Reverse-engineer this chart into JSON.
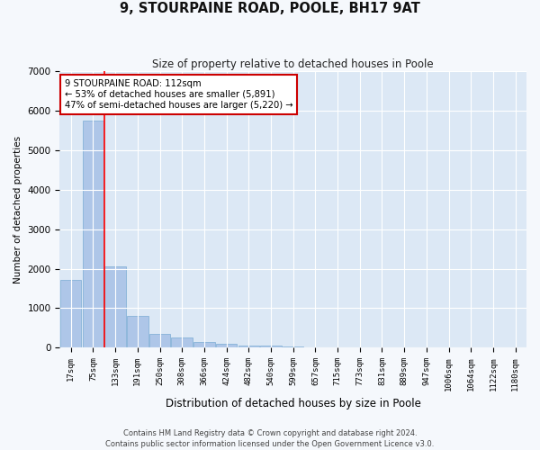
{
  "title": "9, STOURPAINE ROAD, POOLE, BH17 9AT",
  "subtitle": "Size of property relative to detached houses in Poole",
  "xlabel": "Distribution of detached houses by size in Poole",
  "ylabel": "Number of detached properties",
  "bar_color": "#aec6e8",
  "bar_edge_color": "#7aabd4",
  "background_color": "#dce8f5",
  "grid_color": "#ffffff",
  "fig_background": "#f5f8fc",
  "categories": [
    "17sqm",
    "75sqm",
    "133sqm",
    "191sqm",
    "250sqm",
    "308sqm",
    "366sqm",
    "424sqm",
    "482sqm",
    "540sqm",
    "599sqm",
    "657sqm",
    "715sqm",
    "773sqm",
    "831sqm",
    "889sqm",
    "947sqm",
    "1006sqm",
    "1064sqm",
    "1122sqm",
    "1180sqm"
  ],
  "values": [
    1720,
    5750,
    2050,
    800,
    350,
    250,
    155,
    100,
    55,
    45,
    40,
    5,
    5,
    0,
    0,
    0,
    0,
    0,
    0,
    0,
    0
  ],
  "ylim": [
    0,
    7000
  ],
  "yticks": [
    0,
    1000,
    2000,
    3000,
    4000,
    5000,
    6000,
    7000
  ],
  "red_line_x": 1.5,
  "annotation_line1": "9 STOURPAINE ROAD: 112sqm",
  "annotation_line2": "← 53% of detached houses are smaller (5,891)",
  "annotation_line3": "47% of semi-detached houses are larger (5,220) →",
  "annotation_box_color": "#ffffff",
  "annotation_box_edge": "#cc0000",
  "footer_line1": "Contains HM Land Registry data © Crown copyright and database right 2024.",
  "footer_line2": "Contains public sector information licensed under the Open Government Licence v3.0."
}
